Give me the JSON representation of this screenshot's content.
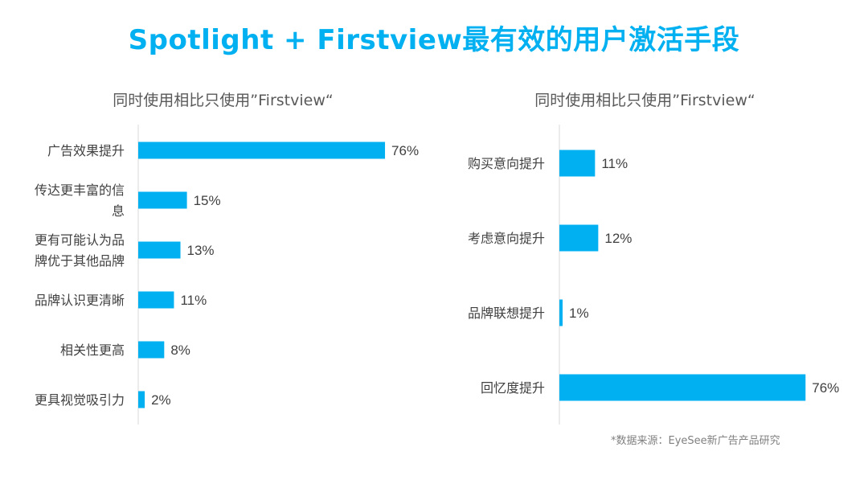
{
  "title": "Spotlight + Firstview最有效的用户激活手段",
  "source": "*数据来源：EyeSee新广告产品研究",
  "colors": {
    "accent": "#00B0F0",
    "bar": "#00B0F0",
    "text": "#404040",
    "axis": "#D9D9D9"
  },
  "chart_data": [
    {
      "type": "bar",
      "orientation": "horizontal",
      "title": "同时使用相比只使用”Firstview“",
      "categories": [
        [
          "广告效果提升"
        ],
        [
          "传达更丰富的信",
          "息"
        ],
        [
          "更有可能认为品",
          "牌优于其他品牌"
        ],
        [
          "品牌认识更清晰"
        ],
        [
          "相关性更高"
        ],
        [
          "更具视觉吸引力"
        ]
      ],
      "values": [
        76,
        15,
        13,
        11,
        8,
        2
      ],
      "value_labels": [
        "76%",
        "15%",
        "13%",
        "11%",
        "8%",
        "2%"
      ],
      "unit": "%",
      "xlim": [
        0,
        100
      ],
      "grid": false
    },
    {
      "type": "bar",
      "orientation": "horizontal",
      "title": "同时使用相比只使用”Firstview“",
      "categories": [
        [
          "购买意向提升"
        ],
        [
          "考虑意向提升"
        ],
        [
          "品牌联想提升"
        ],
        [
          "回忆度提升"
        ]
      ],
      "values": [
        11,
        12,
        1,
        76
      ],
      "value_labels": [
        "11%",
        "12%",
        "1%",
        "76%"
      ],
      "unit": "%",
      "xlim": [
        0,
        100
      ],
      "grid": false
    }
  ]
}
